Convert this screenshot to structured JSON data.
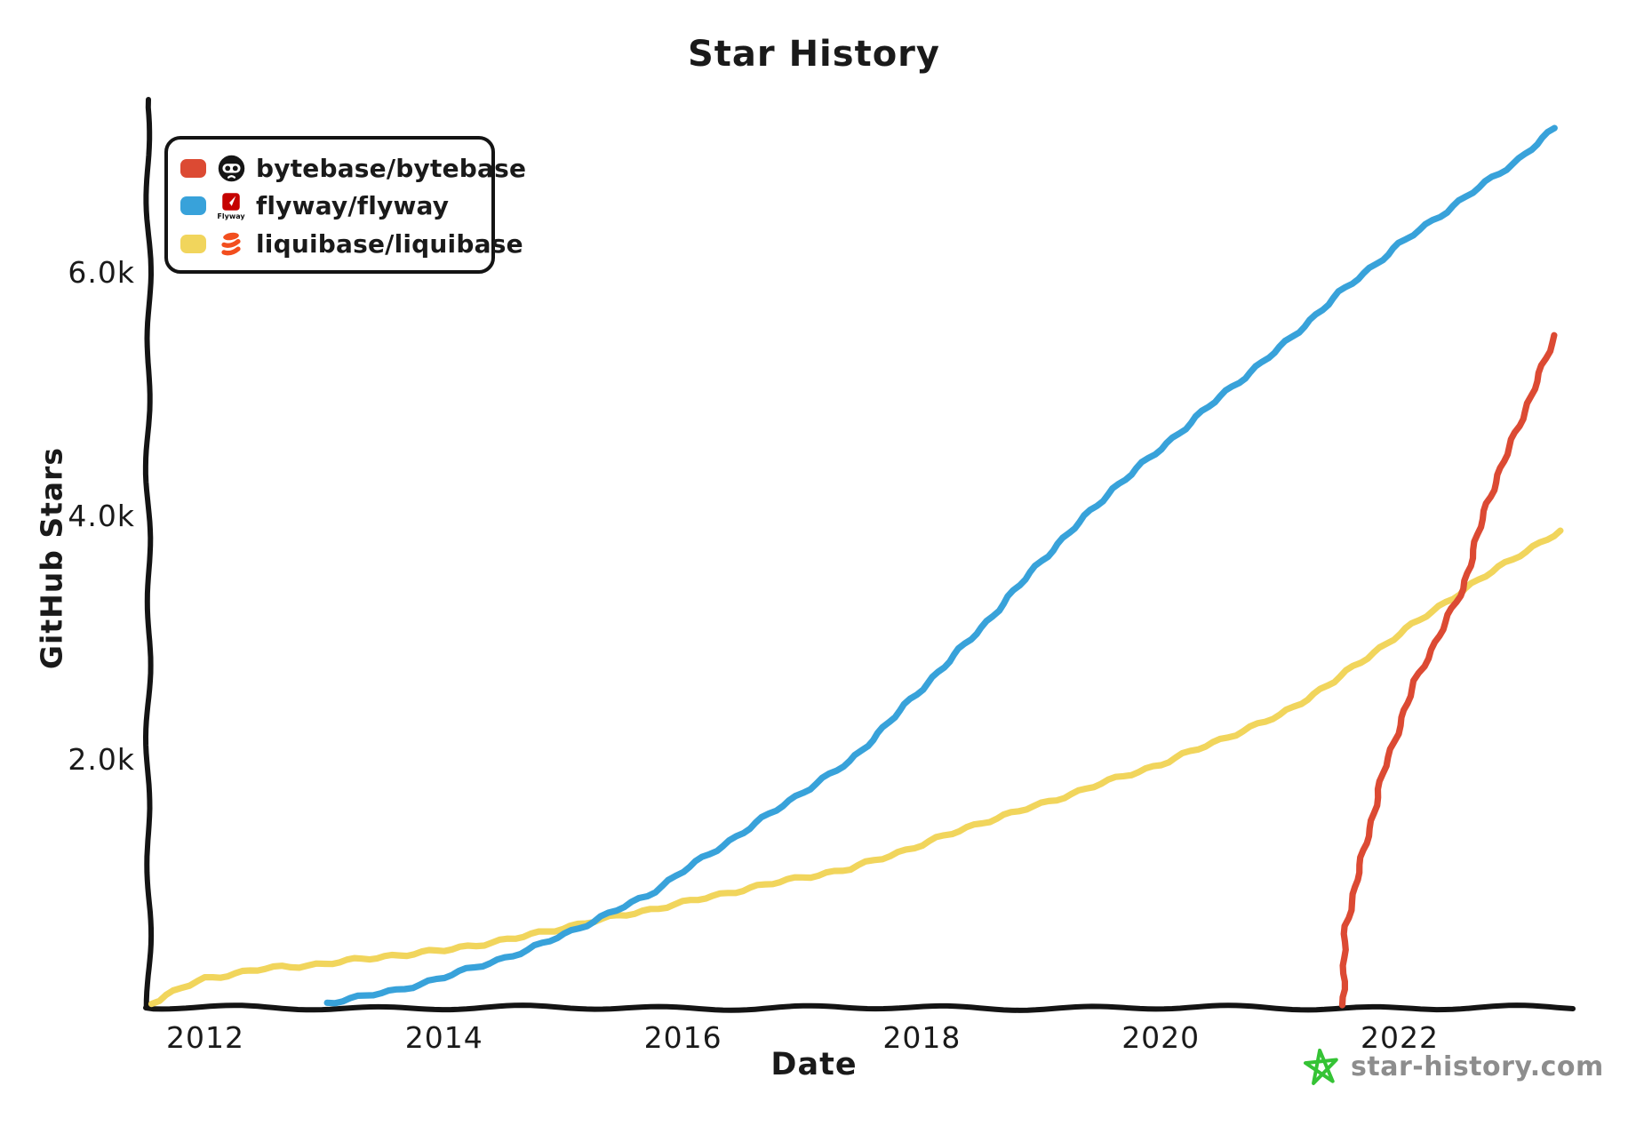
{
  "title": "Star History",
  "axis": {
    "x_label": "Date",
    "y_label": "GitHub Stars"
  },
  "legend": {
    "items": [
      {
        "repo": "bytebase/bytebase"
      },
      {
        "repo": "flyway/flyway",
        "icon_text": "Flyway"
      },
      {
        "repo": "liquibase/liquibase"
      }
    ]
  },
  "watermark": {
    "text": "star-history.com",
    "text_color": "#8d8d8d",
    "star_color": "#35c335"
  },
  "colors": {
    "axis": "#141414",
    "background": "#ffffff"
  },
  "chart_data": {
    "type": "line",
    "title": "Star History",
    "xlabel": "Date",
    "ylabel": "GitHub Stars",
    "grid": false,
    "legend_position": "top-left",
    "xlim": [
      2011.5,
      2023.45
    ],
    "ylim": [
      0,
      7450
    ],
    "x_ticks": [
      {
        "value": 2012,
        "label": "2012"
      },
      {
        "value": 2014,
        "label": "2014"
      },
      {
        "value": 2016,
        "label": "2016"
      },
      {
        "value": 2018,
        "label": "2018"
      },
      {
        "value": 2020,
        "label": "2020"
      },
      {
        "value": 2022,
        "label": "2022"
      }
    ],
    "y_ticks": [
      {
        "value": 2000,
        "label": "2.0k"
      },
      {
        "value": 4000,
        "label": "4.0k"
      },
      {
        "value": 6000,
        "label": "6.0k"
      }
    ],
    "series": [
      {
        "name": "bytebase/bytebase",
        "color": "#dc4a33",
        "points": [
          [
            2021.52,
            0
          ],
          [
            2021.55,
            650
          ],
          [
            2021.6,
            850
          ],
          [
            2021.64,
            1030
          ],
          [
            2021.75,
            1450
          ],
          [
            2021.86,
            1900
          ],
          [
            2022.0,
            2300
          ],
          [
            2022.13,
            2660
          ],
          [
            2022.3,
            2980
          ],
          [
            2022.53,
            3420
          ],
          [
            2022.73,
            4120
          ],
          [
            2022.97,
            4700
          ],
          [
            2023.1,
            5000
          ],
          [
            2023.3,
            5500
          ]
        ]
      },
      {
        "name": "flyway/flyway",
        "color": "#38a2da",
        "points": [
          [
            2013.02,
            20
          ],
          [
            2013.6,
            120
          ],
          [
            2014.0,
            230
          ],
          [
            2014.7,
            450
          ],
          [
            2015.25,
            690
          ],
          [
            2015.7,
            900
          ],
          [
            2016.0,
            1100
          ],
          [
            2016.5,
            1420
          ],
          [
            2017.0,
            1750
          ],
          [
            2017.4,
            2000
          ],
          [
            2018.0,
            2600
          ],
          [
            2018.5,
            3100
          ],
          [
            2019.0,
            3650
          ],
          [
            2019.6,
            4240
          ],
          [
            2020.0,
            4570
          ],
          [
            2020.5,
            5000
          ],
          [
            2021.0,
            5400
          ],
          [
            2021.5,
            5850
          ],
          [
            2022.0,
            6250
          ],
          [
            2022.5,
            6600
          ],
          [
            2023.0,
            6950
          ],
          [
            2023.3,
            7200
          ]
        ]
      },
      {
        "name": "liquibase/liquibase",
        "color": "#f1d55c",
        "points": [
          [
            2011.55,
            10
          ],
          [
            2011.8,
            140
          ],
          [
            2012.0,
            220
          ],
          [
            2012.5,
            300
          ],
          [
            2013.0,
            340
          ],
          [
            2013.5,
            400
          ],
          [
            2014.0,
            450
          ],
          [
            2014.6,
            550
          ],
          [
            2015.25,
            690
          ],
          [
            2016.0,
            840
          ],
          [
            2016.5,
            950
          ],
          [
            2017.0,
            1050
          ],
          [
            2017.4,
            1120
          ],
          [
            2018.0,
            1320
          ],
          [
            2018.5,
            1500
          ],
          [
            2019.0,
            1650
          ],
          [
            2019.5,
            1820
          ],
          [
            2020.0,
            1980
          ],
          [
            2020.5,
            2180
          ],
          [
            2021.0,
            2380
          ],
          [
            2021.45,
            2660
          ],
          [
            2022.0,
            3050
          ],
          [
            2022.55,
            3420
          ],
          [
            2023.0,
            3700
          ],
          [
            2023.35,
            3890
          ]
        ]
      }
    ]
  }
}
